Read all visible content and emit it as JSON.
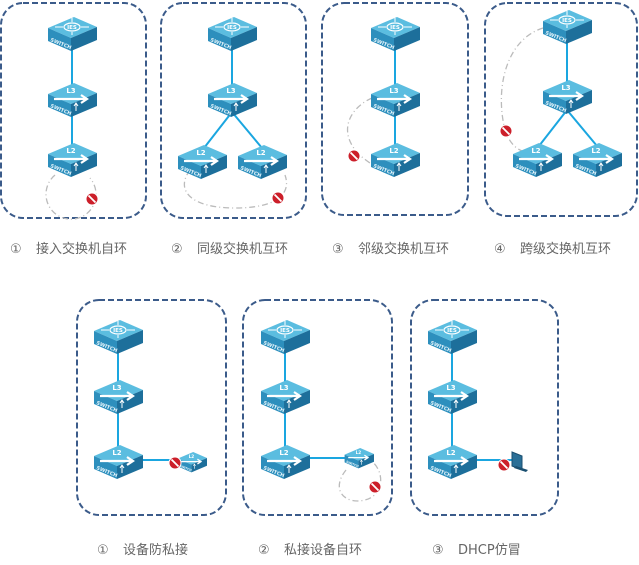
{
  "colors": {
    "panel_border": "#3b5b8a",
    "link": "#1aa6e0",
    "loop": "#bbbbbb",
    "switch_top": "#5bbde0",
    "switch_left": "#2d8fbd",
    "switch_right": "#1d6f9b",
    "block": "#cc1f2a"
  },
  "switch_text": {
    "core": "IES",
    "l3": "L3",
    "l2": "L2",
    "brand": "SWITCH"
  },
  "top_row": [
    {
      "num": "①",
      "label": "接入交换机自环"
    },
    {
      "num": "②",
      "label": "同级交换机互环"
    },
    {
      "num": "③",
      "label": "邻级交换机互环"
    },
    {
      "num": "④",
      "label": "跨级交换机互环"
    }
  ],
  "bottom_row": [
    {
      "num": "①",
      "label": "设备防私接"
    },
    {
      "num": "②",
      "label": "私接设备自环"
    },
    {
      "num": "③",
      "label": "DHCP仿冒"
    }
  ]
}
